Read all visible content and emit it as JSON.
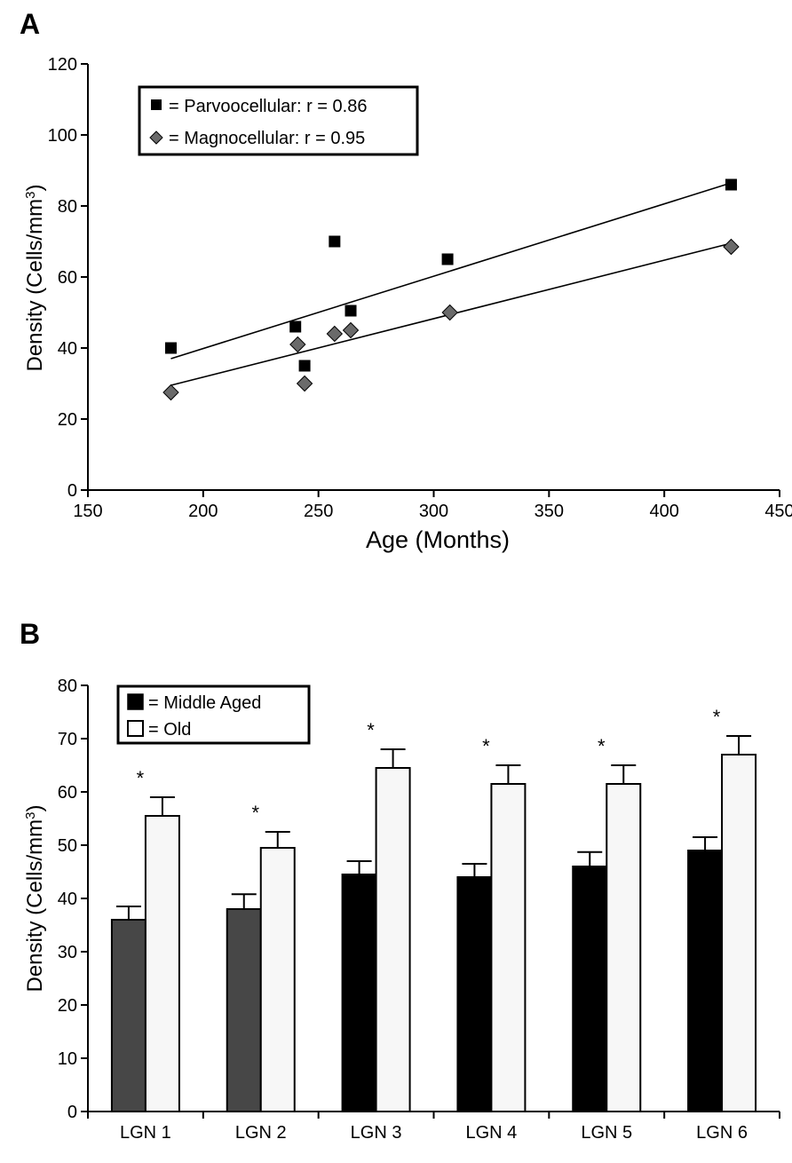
{
  "chart_data": [
    {
      "panel_label": "A",
      "type": "scatter",
      "xlabel": "Age (Months)",
      "ylabel": "Density (Cells/mm",
      "ylabel_sup": "3",
      "ylabel_close": ")",
      "xlim": [
        150,
        450
      ],
      "ylim": [
        0,
        120
      ],
      "xticks": [
        150,
        200,
        250,
        300,
        350,
        400,
        450
      ],
      "yticks": [
        0,
        20,
        40,
        60,
        80,
        100,
        120
      ],
      "legend_position": "top-left",
      "series": [
        {
          "name": "Parvocellular",
          "legend_label": "= Parvoocellular: r = 0.86",
          "marker": "square",
          "color": "#000000",
          "points": [
            [
              186,
              40
            ],
            [
              240,
              46
            ],
            [
              244,
              35
            ],
            [
              257,
              70
            ],
            [
              264,
              50.5
            ],
            [
              306,
              65
            ],
            [
              429,
              86
            ]
          ],
          "trendline": [
            [
              186,
              37
            ],
            [
              429,
              86.5
            ]
          ]
        },
        {
          "name": "Magnocellular",
          "legend_label": "= Magnocellular: r = 0.95",
          "marker": "diamond",
          "color": "#6a6a6a",
          "points": [
            [
              186,
              27.5
            ],
            [
              241,
              41
            ],
            [
              244,
              30
            ],
            [
              257,
              44
            ],
            [
              264,
              45
            ],
            [
              307,
              50
            ],
            [
              429,
              68.5
            ]
          ],
          "trendline": [
            [
              186,
              29.5
            ],
            [
              429,
              69.5
            ]
          ]
        }
      ]
    },
    {
      "panel_label": "B",
      "type": "bar",
      "ylabel": "Density (Cells/mm",
      "ylabel_sup": "3",
      "ylabel_close": ")",
      "ylim": [
        0,
        80
      ],
      "yticks": [
        0,
        10,
        20,
        30,
        40,
        50,
        60,
        70,
        80
      ],
      "categories": [
        "LGN 1",
        "LGN 2",
        "LGN 3",
        "LGN 4",
        "LGN 5",
        "LGN 6"
      ],
      "legend_position": "top-left",
      "significance_marker": "*",
      "series": [
        {
          "name": "Middle Aged",
          "legend_label": "= Middle Aged",
          "values": [
            36,
            38,
            44.5,
            44,
            46,
            49
          ],
          "errors": [
            2.5,
            2.8,
            2.5,
            2.5,
            2.7,
            2.5
          ],
          "colors": [
            "#474747",
            "#474747",
            "#000000",
            "#000000",
            "#000000",
            "#000000"
          ]
        },
        {
          "name": "Old",
          "legend_label": "= Old",
          "values": [
            55.5,
            49.5,
            64.5,
            61.5,
            61.5,
            67
          ],
          "errors": [
            3.5,
            3,
            3.5,
            3.5,
            3.5,
            3.5
          ],
          "colors": [
            "#f7f7f7",
            "#f7f7f7",
            "#f7f7f7",
            "#f7f7f7",
            "#f7f7f7",
            "#f7f7f7"
          ]
        }
      ]
    }
  ]
}
